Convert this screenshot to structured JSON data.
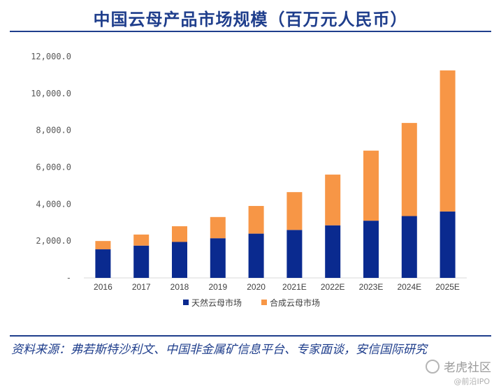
{
  "title": "中国云母产品市场规模（百万元人民币）",
  "source_text": "资料来源：弗若斯特沙利文、中国非金属矿信息平台、专家面谈，安信国际研究",
  "watermark": {
    "main": "老虎社区",
    "sub": "@前沿IPO"
  },
  "colors": {
    "natural": "#0a2a8f",
    "synthetic": "#f79646",
    "title": "#1f3e8c"
  },
  "chart_data": {
    "type": "bar",
    "stacked": true,
    "categories": [
      "2016",
      "2017",
      "2018",
      "2019",
      "2020",
      "2021E",
      "2022E",
      "2023E",
      "2024E",
      "2025E"
    ],
    "series": [
      {
        "name": "天然云母市场",
        "values": [
          1550,
          1750,
          1950,
          2150,
          2400,
          2600,
          2850,
          3100,
          3350,
          3600
        ]
      },
      {
        "name": "合成云母市场",
        "values": [
          450,
          600,
          850,
          1150,
          1500,
          2050,
          2750,
          3800,
          5050,
          7650
        ]
      }
    ],
    "ylim": [
      0,
      12000
    ],
    "yticks": [
      0,
      2000,
      4000,
      6000,
      8000,
      10000,
      12000
    ],
    "ytick_labels": [
      "-",
      "2,000.0",
      "4,000.0",
      "6,000.0",
      "8,000.0",
      "10,000.0",
      "12,000.0"
    ],
    "legend_position": "bottom",
    "grid": false
  }
}
